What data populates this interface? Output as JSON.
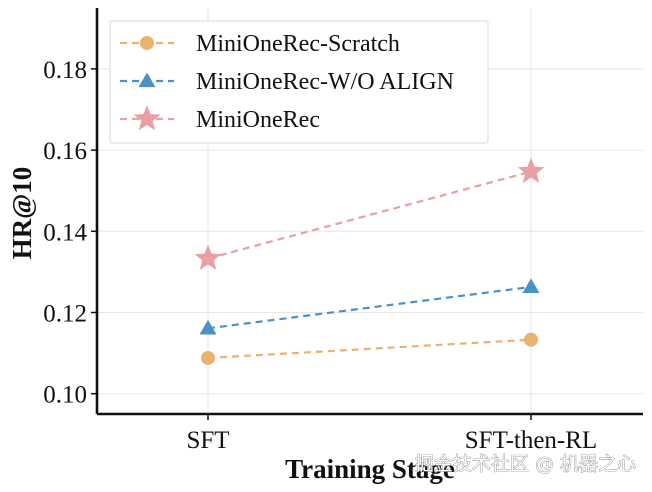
{
  "chart_data": {
    "type": "line",
    "title": "",
    "xlabel": "Training Stage",
    "ylabel": "HR@10",
    "categories": [
      "SFT",
      "SFT-then-RL"
    ],
    "ylim": [
      0.095,
      0.195
    ],
    "yticks": [
      "0.10",
      "0.12",
      "0.14",
      "0.16",
      "0.18"
    ],
    "ytick_values": [
      0.1,
      0.12,
      0.14,
      0.16,
      0.18
    ],
    "grid": true,
    "legend_position": "top-left",
    "series": [
      {
        "name": "MiniOneRec-Scratch",
        "marker": "circle",
        "color": "#E8B36F",
        "values": [
          0.1088,
          0.1133
        ]
      },
      {
        "name": "MiniOneRec-W/O ALIGN",
        "marker": "triangle",
        "color": "#4A92C6",
        "values": [
          0.1161,
          0.1263
        ]
      },
      {
        "name": "MiniOneRec",
        "marker": "star",
        "color": "#EAA0A3",
        "values": [
          0.1333,
          0.1547
        ]
      }
    ]
  },
  "watermark": "掘金技术社区 @ 机器之心"
}
